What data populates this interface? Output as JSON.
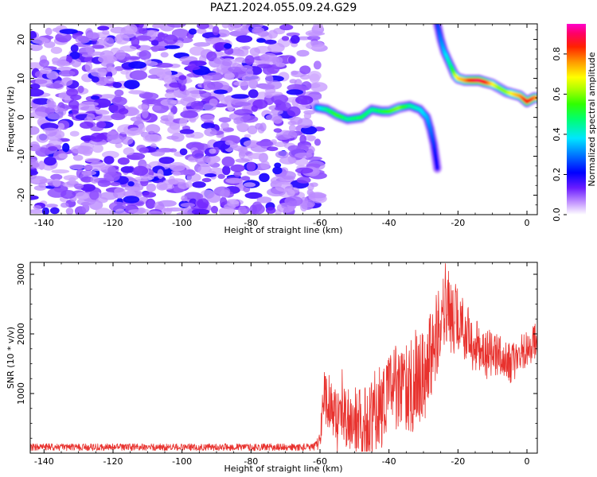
{
  "title": "PAZ1.2024.055.09.24.G29",
  "chart_data": [
    {
      "type": "heatmap",
      "xlabel": "Height of straight line (km)",
      "ylabel": "Frequency (Hz)",
      "xlim": [
        -144,
        3
      ],
      "ylim": [
        -25,
        24
      ],
      "xticks": [
        -140,
        -120,
        -100,
        -80,
        -60,
        -40,
        -20,
        0
      ],
      "yticks": [
        -20,
        -10,
        0,
        10,
        20
      ],
      "colorbar": {
        "label": "Normalized spectral amplitude",
        "range": [
          0,
          0.95
        ],
        "ticks": [
          0.0,
          0.2,
          0.4,
          0.6,
          0.8
        ],
        "colormap": "gist_ncar-like (white, violet, blue, cyan, green, yellow, orange, red, magenta)"
      },
      "noise_region_km": [
        -144,
        -60
      ],
      "ridge": {
        "x": [
          -61,
          -58,
          -55,
          -52,
          -48,
          -45,
          -42,
          -40,
          -37,
          -34,
          -31,
          -29,
          -28,
          -27,
          -26.5,
          -26
        ],
        "y": [
          2.5,
          2,
          0.5,
          -0.5,
          0,
          2,
          1.5,
          1.5,
          2.5,
          3,
          2,
          0,
          -3,
          -7,
          -10,
          -13
        ],
        "amplitude": [
          0.35,
          0.45,
          0.55,
          0.45,
          0.5,
          0.45,
          0.5,
          0.55,
          0.6,
          0.45,
          0.4,
          0.35,
          0.3,
          0.25,
          0.22,
          0.2
        ]
      },
      "ridge2": {
        "x": [
          -26,
          -25,
          -24,
          -23,
          -22,
          -21,
          -20,
          -18,
          -16,
          -14,
          -12,
          -10,
          -8,
          -6,
          -4,
          -2,
          0,
          2,
          3
        ],
        "y": [
          24,
          20,
          17,
          15,
          13,
          11,
          10,
          9.5,
          9.5,
          9.5,
          9,
          8.5,
          7.5,
          6.5,
          6,
          5.5,
          4,
          5,
          5
        ],
        "amplitude": [
          0.25,
          0.3,
          0.35,
          0.4,
          0.45,
          0.6,
          0.7,
          0.75,
          0.85,
          0.9,
          0.85,
          0.7,
          0.6,
          0.6,
          0.7,
          0.75,
          0.85,
          0.8,
          0.75
        ]
      }
    },
    {
      "type": "line",
      "xlabel": "Height of straight line (km)",
      "ylabel": "SNR (10 * v/v)",
      "xlim": [
        -144,
        3
      ],
      "ylim": [
        0,
        3200
      ],
      "xticks": [
        -140,
        -120,
        -100,
        -80,
        -60,
        -40,
        -20,
        0
      ],
      "yticks": [
        1000,
        2000,
        3000
      ],
      "color": "#e8322e",
      "envelope": {
        "x": [
          -144,
          -62,
          -60,
          -59,
          -55,
          -50,
          -45,
          -42,
          -40,
          -35,
          -30,
          -27,
          -25,
          -23,
          -20,
          -15,
          -10,
          -5,
          0,
          3
        ],
        "mean": [
          100,
          100,
          200,
          1000,
          650,
          550,
          550,
          800,
          1100,
          1050,
          1300,
          1750,
          2300,
          2400,
          2200,
          1800,
          1650,
          1500,
          1750,
          1900
        ],
        "amplitude": [
          60,
          60,
          150,
          450,
          450,
          550,
          650,
          700,
          650,
          750,
          800,
          800,
          600,
          700,
          600,
          450,
          400,
          350,
          300,
          300
        ]
      }
    }
  ]
}
